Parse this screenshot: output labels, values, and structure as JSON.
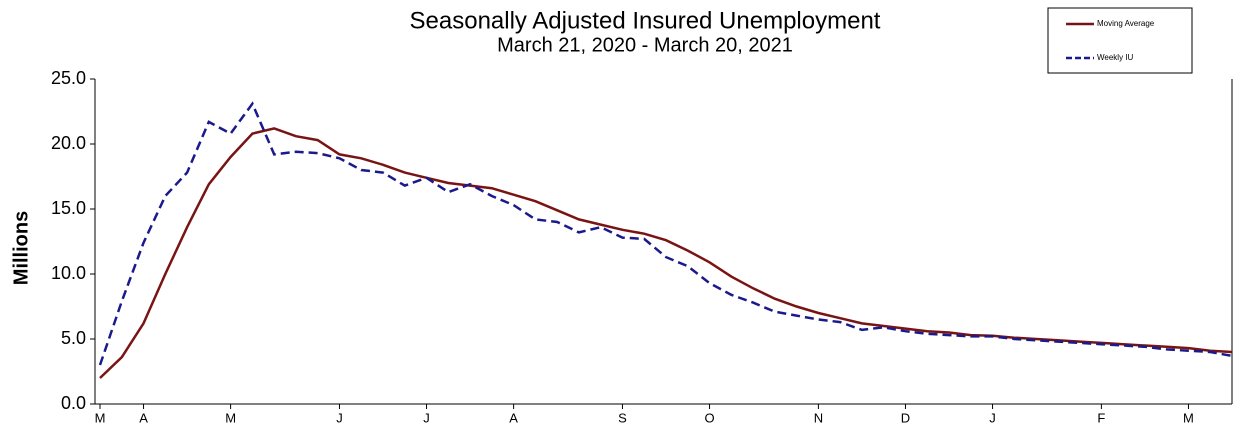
{
  "chart_data": {
    "type": "line",
    "title": "Seasonally Adjusted Insured Unemployment",
    "subtitle": "March 21, 2020 - March 20, 2021",
    "y_label": "Millions",
    "categories": [
      "M",
      null,
      "A",
      null,
      null,
      null,
      "M",
      null,
      null,
      null,
      null,
      "J",
      null,
      null,
      null,
      "J",
      null,
      null,
      null,
      "A",
      null,
      null,
      null,
      null,
      "S",
      null,
      null,
      null,
      "O",
      null,
      null,
      null,
      null,
      "N",
      null,
      null,
      null,
      "D",
      null,
      null,
      null,
      "J",
      null,
      null,
      null,
      null,
      "F",
      null,
      null,
      null,
      "M",
      null,
      null
    ],
    "series": [
      {
        "name": "Moving Average",
        "color": "#7a1414",
        "dashed": false,
        "values": [
          2.0,
          3.6,
          6.2,
          10.0,
          13.6,
          16.9,
          19.0,
          20.8,
          21.2,
          20.6,
          20.3,
          19.2,
          18.9,
          18.4,
          17.8,
          17.4,
          17.0,
          16.8,
          16.6,
          16.1,
          15.6,
          14.9,
          14.2,
          13.8,
          13.4,
          13.1,
          12.6,
          11.8,
          10.9,
          9.8,
          8.9,
          8.1,
          7.5,
          7.0,
          6.6,
          6.2,
          6.0,
          5.8,
          5.6,
          5.5,
          5.3,
          5.25,
          5.1,
          5.0,
          4.9,
          4.8,
          4.7,
          4.6,
          4.5,
          4.4,
          4.3,
          4.1,
          4.0
        ]
      },
      {
        "name": "Weekly IU",
        "color": "#1a1a8c",
        "dashed": true,
        "values": [
          3.0,
          7.9,
          12.4,
          16.0,
          17.8,
          21.7,
          20.8,
          23.1,
          19.2,
          19.4,
          19.3,
          18.9,
          18.0,
          17.8,
          16.8,
          17.4,
          16.3,
          16.9,
          16.0,
          15.3,
          14.2,
          14.0,
          13.2,
          13.6,
          12.8,
          12.7,
          11.3,
          10.6,
          9.3,
          8.4,
          7.8,
          7.1,
          6.8,
          6.5,
          6.3,
          5.7,
          5.9,
          5.6,
          5.4,
          5.3,
          5.2,
          5.2,
          5.0,
          4.9,
          4.8,
          4.7,
          4.6,
          4.5,
          4.4,
          4.2,
          4.1,
          4.0,
          3.7
        ]
      }
    ],
    "ylim": [
      0,
      25
    ],
    "yticks": [
      {
        "value": 0,
        "label": "0.0"
      },
      {
        "value": 5,
        "label": "5.0"
      },
      {
        "value": 10,
        "label": "10.0"
      },
      {
        "value": 15,
        "label": "15.0"
      },
      {
        "value": 20,
        "label": "20.0"
      },
      {
        "value": 25,
        "label": "25.0"
      }
    ],
    "grid": false,
    "legend": "top-right"
  }
}
